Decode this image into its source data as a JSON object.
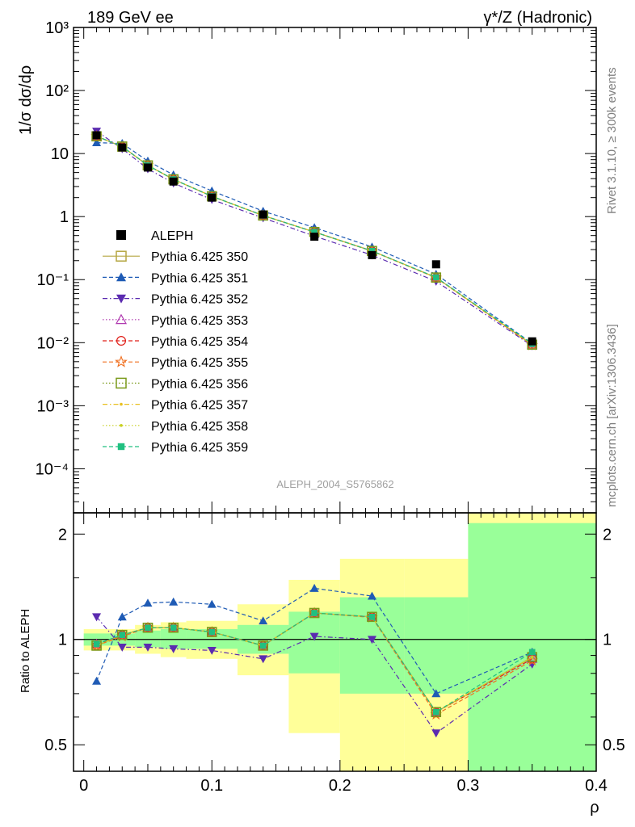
{
  "header": {
    "left": "189 GeV ee",
    "right": "γ*/Z (Hadronic)"
  },
  "side": {
    "top": "Rivet 3.1.10, ≥ 300k events",
    "bottom": "mcplots.cern.ch [arXiv:1306.3436]"
  },
  "analysis_label": "ALEPH_2004_S5765862",
  "chart_data": [
    {
      "type": "line",
      "panel": "main",
      "ylabel": "1/σ dσ/dρ",
      "yscale": "log",
      "ylim": [
        2e-05,
        1000
      ],
      "xlim": [
        -0.008,
        0.4
      ],
      "ytick_labels": [
        "10³",
        "10²",
        "10",
        "1",
        "10⁻¹",
        "10⁻²",
        "10⁻³",
        "10⁻⁴"
      ],
      "x": [
        0.01,
        0.03,
        0.05,
        0.07,
        0.1,
        0.14,
        0.18,
        0.225,
        0.275,
        0.35
      ],
      "data_series": {
        "name": "ALEPH",
        "values": [
          19.5,
          12.5,
          6.0,
          3.6,
          2.0,
          1.08,
          0.48,
          0.245,
          0.175,
          0.0105
        ]
      },
      "series": [
        {
          "name": "Pythia 6.425 350",
          "color": "#b5a642",
          "style": "solid",
          "marker": "open-square",
          "values": [
            18.7,
            12.9,
            6.5,
            3.9,
            2.1,
            1.04,
            0.57,
            0.285,
            0.108,
            0.0093
          ]
        },
        {
          "name": "Pythia 6.425 351",
          "color": "#1f5bb5",
          "style": "dashed",
          "marker": "filled-triangle-up",
          "values": [
            14.9,
            14.5,
            7.6,
            4.6,
            2.56,
            1.22,
            0.67,
            0.33,
            0.122,
            0.0097
          ]
        },
        {
          "name": "Pythia 6.425 352",
          "color": "#5b2bb0",
          "style": "dashdot",
          "marker": "filled-triangle-down",
          "values": [
            22.6,
            11.9,
            5.7,
            3.4,
            1.86,
            0.95,
            0.49,
            0.245,
            0.094,
            0.0089
          ]
        },
        {
          "name": "Pythia 6.425 353",
          "color": "#b03ab0",
          "style": "dotted",
          "marker": "open-triangle-up",
          "values": [
            18.9,
            12.9,
            6.5,
            3.9,
            2.1,
            1.04,
            0.57,
            0.285,
            0.108,
            0.0092
          ]
        },
        {
          "name": "Pythia 6.425 354",
          "color": "#e0201a",
          "style": "dashed",
          "marker": "open-circle",
          "values": [
            18.8,
            12.9,
            6.5,
            3.9,
            2.1,
            1.04,
            0.57,
            0.285,
            0.108,
            0.0092
          ]
        },
        {
          "name": "Pythia 6.425 355",
          "color": "#f07020",
          "style": "dashed",
          "marker": "open-star",
          "values": [
            18.8,
            12.8,
            6.5,
            3.9,
            2.1,
            1.04,
            0.57,
            0.283,
            0.107,
            0.0091
          ]
        },
        {
          "name": "Pythia 6.425 356",
          "color": "#7a9a1a",
          "style": "dotted",
          "marker": "open-square",
          "values": [
            18.8,
            12.9,
            6.5,
            3.9,
            2.1,
            1.04,
            0.57,
            0.285,
            0.108,
            0.0093
          ]
        },
        {
          "name": "Pythia 6.425 357",
          "color": "#e8c020",
          "style": "dashdot",
          "marker": "small-dot",
          "values": [
            18.8,
            12.9,
            6.5,
            3.9,
            2.1,
            1.04,
            0.57,
            0.285,
            0.108,
            0.0093
          ]
        },
        {
          "name": "Pythia 6.425 358",
          "color": "#c8d020",
          "style": "dotted",
          "marker": "small-dot",
          "values": [
            18.8,
            12.9,
            6.5,
            3.9,
            2.1,
            1.04,
            0.57,
            0.285,
            0.108,
            0.0093
          ]
        },
        {
          "name": "Pythia 6.425 359",
          "color": "#20c080",
          "style": "dashed",
          "marker": "filled-square",
          "values": [
            18.9,
            12.9,
            6.5,
            3.9,
            2.1,
            1.04,
            0.57,
            0.285,
            0.109,
            0.0096
          ]
        }
      ]
    },
    {
      "type": "line",
      "panel": "ratio",
      "ylabel": "Ratio to ALEPH",
      "xlabel": "ρ",
      "yscale": "log",
      "ylim": [
        0.42,
        2.3
      ],
      "xlim": [
        -0.008,
        0.4
      ],
      "ytick_labels": [
        "0.5",
        "1",
        "2"
      ],
      "xtick_labels": [
        "0",
        "0.1",
        "0.2",
        "0.3",
        "0.4"
      ],
      "reference_line": 1,
      "uncertainty_bands": [
        {
          "x0": 0.0,
          "x1": 0.02,
          "green": [
            0.96,
            1.04
          ],
          "yellow": [
            0.93,
            1.07
          ]
        },
        {
          "x0": 0.02,
          "x1": 0.04,
          "green": [
            0.96,
            1.04
          ],
          "yellow": [
            0.93,
            1.07
          ]
        },
        {
          "x0": 0.04,
          "x1": 0.06,
          "green": [
            0.95,
            1.06
          ],
          "yellow": [
            0.91,
            1.1
          ]
        },
        {
          "x0": 0.06,
          "x1": 0.08,
          "green": [
            0.94,
            1.07
          ],
          "yellow": [
            0.89,
            1.12
          ]
        },
        {
          "x0": 0.08,
          "x1": 0.12,
          "green": [
            0.94,
            1.07
          ],
          "yellow": [
            0.88,
            1.13
          ]
        },
        {
          "x0": 0.12,
          "x1": 0.16,
          "green": [
            0.91,
            1.1
          ],
          "yellow": [
            0.79,
            1.26
          ]
        },
        {
          "x0": 0.16,
          "x1": 0.2,
          "green": [
            0.8,
            1.2
          ],
          "yellow": [
            0.54,
            1.48
          ]
        },
        {
          "x0": 0.2,
          "x1": 0.25,
          "green": [
            0.7,
            1.32
          ],
          "yellow": [
            0.42,
            1.7
          ]
        },
        {
          "x0": 0.25,
          "x1": 0.3,
          "green": [
            0.7,
            1.32
          ],
          "yellow": [
            0.42,
            1.7
          ]
        },
        {
          "x0": 0.3,
          "x1": 0.4,
          "green": [
            0.42,
            2.15
          ],
          "yellow": [
            0.42,
            2.3
          ]
        }
      ],
      "x": [
        0.01,
        0.03,
        0.05,
        0.07,
        0.1,
        0.14,
        0.18,
        0.225,
        0.275,
        0.35
      ],
      "series": [
        {
          "name": "Pythia 6.425 350",
          "values": [
            0.96,
            1.03,
            1.08,
            1.08,
            1.05,
            0.96,
            1.19,
            1.16,
            0.62,
            0.89
          ]
        },
        {
          "name": "Pythia 6.425 351",
          "values": [
            0.76,
            1.16,
            1.27,
            1.28,
            1.26,
            1.13,
            1.4,
            1.33,
            0.7,
            0.92
          ]
        },
        {
          "name": "Pythia 6.425 352",
          "values": [
            1.16,
            0.95,
            0.95,
            0.94,
            0.93,
            0.88,
            1.02,
            1.0,
            0.54,
            0.85
          ]
        },
        {
          "name": "Pythia 6.425 353",
          "values": [
            0.97,
            1.03,
            1.08,
            1.08,
            1.05,
            0.96,
            1.19,
            1.16,
            0.62,
            0.88
          ]
        },
        {
          "name": "Pythia 6.425 354",
          "values": [
            0.96,
            1.03,
            1.08,
            1.08,
            1.05,
            0.96,
            1.19,
            1.16,
            0.62,
            0.88
          ]
        },
        {
          "name": "Pythia 6.425 355",
          "values": [
            0.96,
            1.02,
            1.08,
            1.08,
            1.05,
            0.96,
            1.19,
            1.155,
            0.61,
            0.87
          ]
        },
        {
          "name": "Pythia 6.425 356",
          "values": [
            0.96,
            1.03,
            1.08,
            1.08,
            1.05,
            0.96,
            1.19,
            1.16,
            0.62,
            0.89
          ]
        },
        {
          "name": "Pythia 6.425 357",
          "values": [
            0.96,
            1.03,
            1.08,
            1.08,
            1.05,
            0.96,
            1.19,
            1.16,
            0.62,
            0.89
          ]
        },
        {
          "name": "Pythia 6.425 358",
          "values": [
            0.96,
            1.03,
            1.08,
            1.08,
            1.05,
            0.96,
            1.19,
            1.16,
            0.62,
            0.89
          ]
        },
        {
          "name": "Pythia 6.425 359",
          "values": [
            0.97,
            1.03,
            1.08,
            1.08,
            1.05,
            0.96,
            1.19,
            1.16,
            0.62,
            0.92
          ]
        }
      ]
    }
  ]
}
